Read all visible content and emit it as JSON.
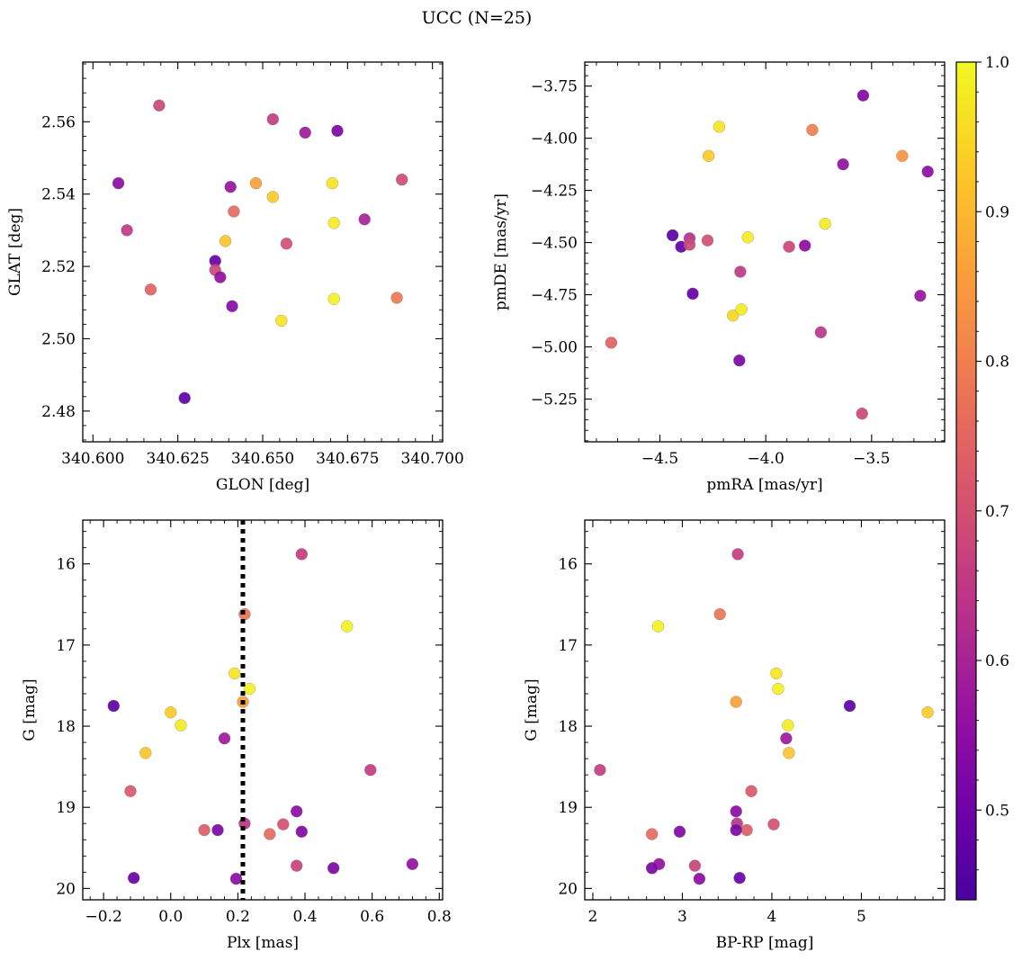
{
  "chart_data": {
    "title": "UCC (N=25)",
    "colorbar": {
      "colormap": "plasma",
      "range": [
        0.44,
        1.0
      ],
      "ticks": [
        0.5,
        0.6,
        0.7,
        0.8,
        0.9,
        1.0
      ],
      "tick_labels": [
        "0.5",
        "0.6",
        "0.7",
        "0.8",
        "0.9",
        "1.0"
      ]
    },
    "panels": [
      {
        "name": "glon-glat",
        "type": "scatter",
        "xlabel": "GLON [deg]",
        "ylabel": "GLAT [deg]",
        "xlim": [
          340.597,
          340.703
        ],
        "ylim": [
          2.4715,
          2.5765
        ],
        "x_ticks": [
          340.6,
          340.625,
          340.65,
          340.675,
          340.7
        ],
        "x_tick_labels": [
          "340.600",
          "340.625",
          "340.650",
          "340.675",
          "340.700"
        ],
        "y_ticks": [
          2.48,
          2.5,
          2.52,
          2.54,
          2.56
        ],
        "y_tick_labels": [
          "2.48",
          "2.50",
          "2.52",
          "2.54",
          "2.56"
        ],
        "y_inverted": false,
        "points": [
          {
            "x": 340.6195,
            "y": 2.5645,
            "c": 0.68
          },
          {
            "x": 340.6075,
            "y": 2.543,
            "c": 0.55
          },
          {
            "x": 340.61,
            "y": 2.53,
            "c": 0.65
          },
          {
            "x": 340.617,
            "y": 2.5136,
            "c": 0.74
          },
          {
            "x": 340.627,
            "y": 2.4836,
            "c": 0.47
          },
          {
            "x": 340.636,
            "y": 2.5215,
            "c": 0.49
          },
          {
            "x": 340.636,
            "y": 2.519,
            "c": 0.68
          },
          {
            "x": 340.6375,
            "y": 2.517,
            "c": 0.56
          },
          {
            "x": 340.639,
            "y": 2.527,
            "c": 0.92
          },
          {
            "x": 340.6405,
            "y": 2.542,
            "c": 0.57
          },
          {
            "x": 340.641,
            "y": 2.509,
            "c": 0.54
          },
          {
            "x": 340.6415,
            "y": 2.5352,
            "c": 0.76
          },
          {
            "x": 340.648,
            "y": 2.543,
            "c": 0.86
          },
          {
            "x": 340.653,
            "y": 2.5607,
            "c": 0.66
          },
          {
            "x": 340.653,
            "y": 2.5392,
            "c": 0.93
          },
          {
            "x": 340.6555,
            "y": 2.505,
            "c": 0.97
          },
          {
            "x": 340.657,
            "y": 2.5263,
            "c": 0.7
          },
          {
            "x": 340.6625,
            "y": 2.557,
            "c": 0.58
          },
          {
            "x": 340.6705,
            "y": 2.543,
            "c": 0.97
          },
          {
            "x": 340.671,
            "y": 2.532,
            "c": 0.98
          },
          {
            "x": 340.671,
            "y": 2.511,
            "c": 0.99
          },
          {
            "x": 340.672,
            "y": 2.5575,
            "c": 0.52
          },
          {
            "x": 340.68,
            "y": 2.533,
            "c": 0.6
          },
          {
            "x": 340.6895,
            "y": 2.5113,
            "c": 0.79
          },
          {
            "x": 340.691,
            "y": 2.544,
            "c": 0.69
          }
        ]
      },
      {
        "name": "pmra-pmde",
        "type": "scatter",
        "xlabel": "pmRA [mas/yr]",
        "ylabel": "pmDE [mas/yr]",
        "xlim": [
          -4.855,
          -3.155
        ],
        "ylim": [
          -5.455,
          -3.635
        ],
        "x_ticks": [
          -4.5,
          -4.0,
          -3.5
        ],
        "x_tick_labels": [
          "−4.5",
          "−4.0",
          "−3.5"
        ],
        "y_ticks": [
          -5.25,
          -5.0,
          -4.75,
          -4.5,
          -4.25,
          -4.0,
          -3.75
        ],
        "y_tick_labels": [
          "−5.25",
          "−5.00",
          "−4.75",
          "−4.50",
          "−4.25",
          "−4.00",
          "−3.75"
        ],
        "y_inverted": false,
        "points": [
          {
            "x": -4.73,
            "y": -4.98,
            "c": 0.74
          },
          {
            "x": -4.44,
            "y": -4.465,
            "c": 0.47
          },
          {
            "x": -4.4,
            "y": -4.52,
            "c": 0.48
          },
          {
            "x": -4.36,
            "y": -4.48,
            "c": 0.63
          },
          {
            "x": -4.36,
            "y": -4.51,
            "c": 0.68
          },
          {
            "x": -4.345,
            "y": -4.745,
            "c": 0.48
          },
          {
            "x": -4.275,
            "y": -4.49,
            "c": 0.7
          },
          {
            "x": -4.27,
            "y": -4.085,
            "c": 0.93
          },
          {
            "x": -4.22,
            "y": -3.945,
            "c": 0.97
          },
          {
            "x": -4.155,
            "y": -4.85,
            "c": 0.95
          },
          {
            "x": -4.125,
            "y": -5.065,
            "c": 0.52
          },
          {
            "x": -4.12,
            "y": -4.64,
            "c": 0.65
          },
          {
            "x": -4.115,
            "y": -4.82,
            "c": 0.98
          },
          {
            "x": -4.085,
            "y": -4.475,
            "c": 0.98
          },
          {
            "x": -3.89,
            "y": -4.52,
            "c": 0.68
          },
          {
            "x": -3.815,
            "y": -4.515,
            "c": 0.55
          },
          {
            "x": -3.78,
            "y": -3.96,
            "c": 0.8
          },
          {
            "x": -3.74,
            "y": -4.93,
            "c": 0.64
          },
          {
            "x": -3.72,
            "y": -4.41,
            "c": 0.98
          },
          {
            "x": -3.635,
            "y": -4.125,
            "c": 0.56
          },
          {
            "x": -3.545,
            "y": -5.32,
            "c": 0.68
          },
          {
            "x": -3.54,
            "y": -3.795,
            "c": 0.53
          },
          {
            "x": -3.355,
            "y": -4.085,
            "c": 0.84
          },
          {
            "x": -3.27,
            "y": -4.755,
            "c": 0.57
          },
          {
            "x": -3.235,
            "y": -4.16,
            "c": 0.55
          }
        ]
      },
      {
        "name": "plx-g",
        "type": "scatter",
        "xlabel": "Plx [mas]",
        "ylabel": "G [mag]",
        "xlim": [
          -0.262,
          0.81
        ],
        "ylim": [
          15.46,
          20.14
        ],
        "x_ticks": [
          -0.2,
          0.0,
          0.2,
          0.4,
          0.6,
          0.8
        ],
        "x_tick_labels": [
          "−0.2",
          "0.0",
          "0.2",
          "0.4",
          "0.6",
          "0.8"
        ],
        "y_ticks": [
          16,
          17,
          18,
          19,
          20
        ],
        "y_tick_labels": [
          "16",
          "17",
          "18",
          "19",
          "20"
        ],
        "y_inverted": true,
        "vline": 0.215,
        "points": [
          {
            "x": 0.39,
            "y": 15.88,
            "c": 0.66
          },
          {
            "x": 0.22,
            "y": 16.62,
            "c": 0.78
          },
          {
            "x": 0.525,
            "y": 16.77,
            "c": 0.99
          },
          {
            "x": 0.19,
            "y": 17.35,
            "c": 0.97
          },
          {
            "x": 0.235,
            "y": 17.54,
            "c": 0.99
          },
          {
            "x": 0.215,
            "y": 17.7,
            "c": 0.86
          },
          {
            "x": -0.17,
            "y": 17.75,
            "c": 0.47
          },
          {
            "x": 0.0,
            "y": 17.83,
            "c": 0.93
          },
          {
            "x": 0.03,
            "y": 17.99,
            "c": 0.98
          },
          {
            "x": 0.16,
            "y": 18.15,
            "c": 0.58
          },
          {
            "x": -0.075,
            "y": 18.33,
            "c": 0.92
          },
          {
            "x": 0.595,
            "y": 18.54,
            "c": 0.66
          },
          {
            "x": -0.12,
            "y": 18.8,
            "c": 0.72
          },
          {
            "x": 0.375,
            "y": 19.05,
            "c": 0.55
          },
          {
            "x": 0.22,
            "y": 19.2,
            "c": 0.64
          },
          {
            "x": 0.335,
            "y": 19.21,
            "c": 0.7
          },
          {
            "x": 0.1,
            "y": 19.28,
            "c": 0.73
          },
          {
            "x": 0.14,
            "y": 19.28,
            "c": 0.52
          },
          {
            "x": 0.39,
            "y": 19.3,
            "c": 0.53
          },
          {
            "x": 0.295,
            "y": 19.33,
            "c": 0.76
          },
          {
            "x": 0.375,
            "y": 19.72,
            "c": 0.67
          },
          {
            "x": 0.72,
            "y": 19.7,
            "c": 0.56
          },
          {
            "x": 0.485,
            "y": 19.75,
            "c": 0.52
          },
          {
            "x": -0.11,
            "y": 19.87,
            "c": 0.49
          },
          {
            "x": 0.195,
            "y": 19.88,
            "c": 0.55
          }
        ]
      },
      {
        "name": "bprp-g",
        "type": "scatter",
        "xlabel": "BP-RP [mag]",
        "ylabel": "G [mag]",
        "xlim": [
          1.91,
          5.93
        ],
        "ylim": [
          15.46,
          20.14
        ],
        "x_ticks": [
          2,
          3,
          4,
          5
        ],
        "x_tick_labels": [
          "2",
          "3",
          "4",
          "5"
        ],
        "y_ticks": [
          16,
          17,
          18,
          19,
          20
        ],
        "y_tick_labels": [
          "16",
          "17",
          "18",
          "19",
          "20"
        ],
        "y_inverted": true,
        "points": [
          {
            "x": 3.62,
            "y": 15.88,
            "c": 0.66
          },
          {
            "x": 3.42,
            "y": 16.62,
            "c": 0.78
          },
          {
            "x": 2.73,
            "y": 16.77,
            "c": 0.99
          },
          {
            "x": 4.05,
            "y": 17.35,
            "c": 0.97
          },
          {
            "x": 4.07,
            "y": 17.54,
            "c": 0.99
          },
          {
            "x": 3.6,
            "y": 17.7,
            "c": 0.86
          },
          {
            "x": 4.87,
            "y": 17.75,
            "c": 0.47
          },
          {
            "x": 5.74,
            "y": 17.83,
            "c": 0.93
          },
          {
            "x": 4.18,
            "y": 17.99,
            "c": 0.98
          },
          {
            "x": 4.16,
            "y": 18.15,
            "c": 0.58
          },
          {
            "x": 4.19,
            "y": 18.33,
            "c": 0.92
          },
          {
            "x": 2.08,
            "y": 18.54,
            "c": 0.66
          },
          {
            "x": 3.77,
            "y": 18.8,
            "c": 0.72
          },
          {
            "x": 3.6,
            "y": 19.05,
            "c": 0.55
          },
          {
            "x": 3.61,
            "y": 19.2,
            "c": 0.64
          },
          {
            "x": 4.02,
            "y": 19.21,
            "c": 0.7
          },
          {
            "x": 3.72,
            "y": 19.28,
            "c": 0.73
          },
          {
            "x": 3.6,
            "y": 19.28,
            "c": 0.52
          },
          {
            "x": 2.97,
            "y": 19.3,
            "c": 0.53
          },
          {
            "x": 2.66,
            "y": 19.33,
            "c": 0.76
          },
          {
            "x": 3.14,
            "y": 19.72,
            "c": 0.67
          },
          {
            "x": 2.74,
            "y": 19.7,
            "c": 0.56
          },
          {
            "x": 2.66,
            "y": 19.75,
            "c": 0.52
          },
          {
            "x": 3.64,
            "y": 19.87,
            "c": 0.49
          },
          {
            "x": 3.19,
            "y": 19.88,
            "c": 0.55
          }
        ]
      }
    ]
  }
}
